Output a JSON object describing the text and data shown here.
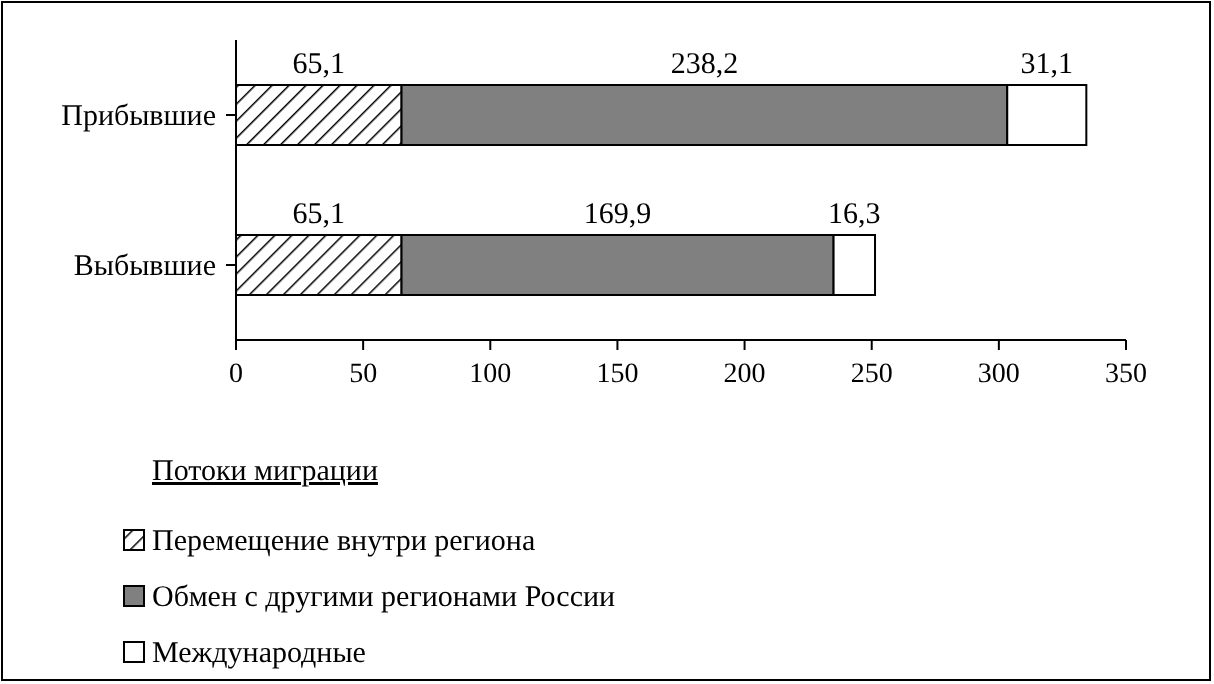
{
  "chart_data": {
    "type": "bar",
    "orientation": "horizontal",
    "stacked": true,
    "categories": [
      "Прибывшие",
      "Выбывшие"
    ],
    "series": [
      {
        "name": "Перемещение внутри региона",
        "color": "#000000",
        "values": [
          65.1,
          65.1
        ],
        "value_labels": [
          "65,1",
          "65,1"
        ]
      },
      {
        "name": "Обмен с другими регионами России",
        "color": "#808080",
        "values": [
          238.2,
          169.9
        ],
        "value_labels": [
          "238,2",
          "169,9"
        ]
      },
      {
        "name": "Международные",
        "color": "#ffffff",
        "values": [
          31.1,
          16.3
        ],
        "value_labels": [
          "31,1",
          "16,3"
        ]
      }
    ],
    "xlim": [
      0,
      350
    ],
    "xticks": [
      0,
      50,
      100,
      150,
      200,
      250,
      300,
      350
    ],
    "legend": "bottom",
    "legend_title": "Потоки миграции",
    "grid": false
  }
}
